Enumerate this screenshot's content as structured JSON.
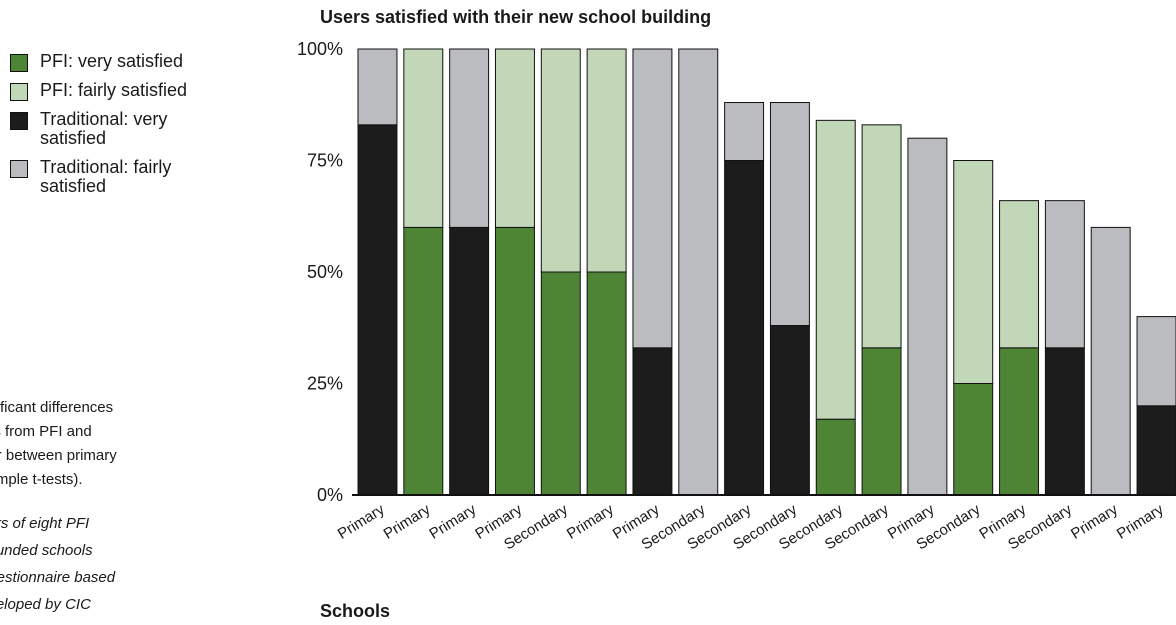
{
  "legend": {
    "items": [
      {
        "label": "PFI: very satisfied",
        "color": "#4d8534"
      },
      {
        "label": "PFI: fairly satisfied",
        "color": "#c2d6b8"
      },
      {
        "label": "Traditional: very satisfied",
        "color": "#1c1c1c"
      },
      {
        "label": "Traditional: fairly satisfied",
        "color": "#bbbcc0"
      }
    ]
  },
  "notes": {
    "text": "gnificant differences\ners from PFI and\nnor between primary\nsample t-tests).",
    "italic": "sers of eight PFI\ny funded schools\nquestionnaire based\neveloped by CIC"
  },
  "chart_data": {
    "type": "bar",
    "stacked": true,
    "title": "Users satisfied with their new school building",
    "xlabel": "Schools",
    "ylabel": "",
    "ylim": [
      0,
      100
    ],
    "y_ticks": [
      "0%",
      "25%",
      "50%",
      "75%",
      "100%"
    ],
    "categories": [
      "Primary",
      "Primary",
      "Primary",
      "Primary",
      "Secondary",
      "Primary",
      "Primary",
      "Secondary",
      "Secondary",
      "Secondary",
      "Secondary",
      "Secondary",
      "Primary",
      "Secondary",
      "Primary",
      "Secondary",
      "Primary",
      "Primary"
    ],
    "bars": [
      {
        "type": "Traditional",
        "very": 83,
        "fairly": 17
      },
      {
        "type": "PFI",
        "very": 60,
        "fairly": 40
      },
      {
        "type": "Traditional",
        "very": 60,
        "fairly": 40
      },
      {
        "type": "PFI",
        "very": 60,
        "fairly": 40
      },
      {
        "type": "PFI",
        "very": 50,
        "fairly": 50
      },
      {
        "type": "PFI",
        "very": 50,
        "fairly": 50
      },
      {
        "type": "Traditional",
        "very": 33,
        "fairly": 67
      },
      {
        "type": "Traditional",
        "very": 0,
        "fairly": 100
      },
      {
        "type": "Traditional",
        "very": 75,
        "fairly": 13
      },
      {
        "type": "Traditional",
        "very": 38,
        "fairly": 50
      },
      {
        "type": "PFI",
        "very": 17,
        "fairly": 67
      },
      {
        "type": "PFI",
        "very": 33,
        "fairly": 50
      },
      {
        "type": "Traditional",
        "very": 0,
        "fairly": 80
      },
      {
        "type": "PFI",
        "very": 25,
        "fairly": 50
      },
      {
        "type": "PFI",
        "very": 33,
        "fairly": 33
      },
      {
        "type": "Traditional",
        "very": 33,
        "fairly": 33
      },
      {
        "type": "Traditional",
        "very": 0,
        "fairly": 60
      },
      {
        "type": "Traditional",
        "very": 20,
        "fairly": 20
      }
    ],
    "colors": {
      "PFI_very": "#4d8534",
      "PFI_fairly": "#c2d6b8",
      "Traditional_very": "#1c1c1c",
      "Traditional_fairly": "#bbbcc0"
    },
    "grid": false,
    "legend_position": "left"
  }
}
